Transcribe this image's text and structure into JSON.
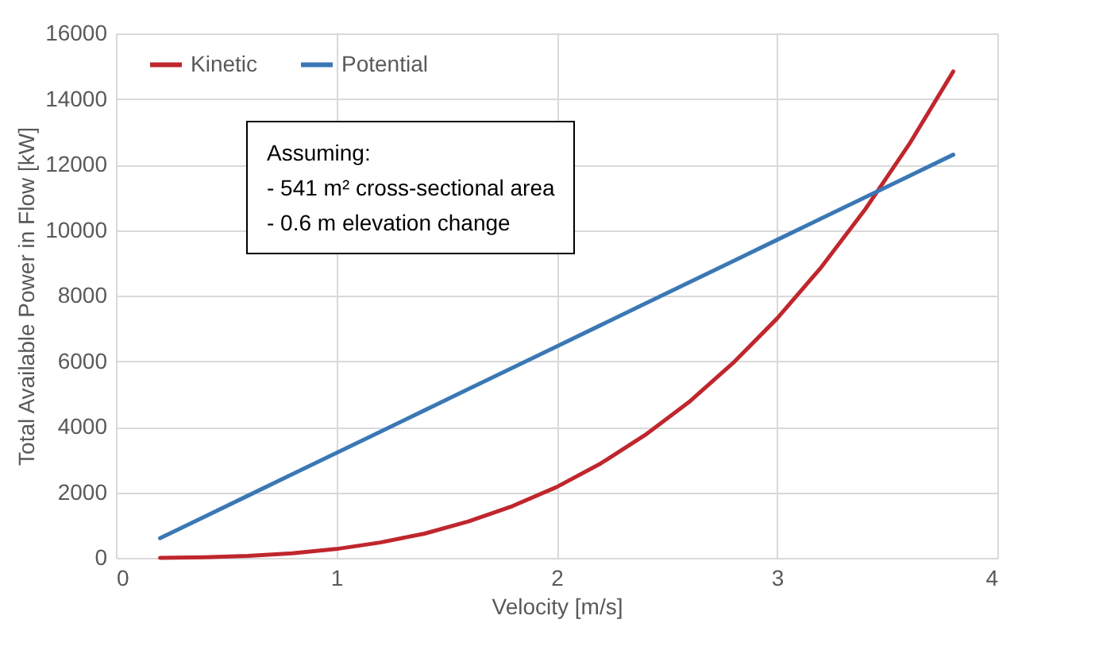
{
  "chart_data": {
    "type": "line",
    "xlabel": "Velocity [m/s]",
    "ylabel": "Total Available Power in Flow [kW]",
    "x": [
      0.2,
      0.4,
      0.6,
      0.8,
      1.0,
      1.2,
      1.4,
      1.6,
      1.8,
      2.0,
      2.2,
      2.4,
      2.6,
      2.8,
      3.0,
      3.2,
      3.4,
      3.6,
      3.8
    ],
    "series": [
      {
        "name": "Kinetic",
        "color": "#c0262d",
        "values": [
          0,
          20,
          60,
          140,
          270,
          470,
          740,
          1110,
          1580,
          2160,
          2880,
          3740,
          4750,
          5940,
          7300,
          8860,
          10630,
          12620,
          14840
        ]
      },
      {
        "name": "Potential",
        "color": "#3a78b5",
        "values": [
          600,
          1250,
          1900,
          2550,
          3200,
          3850,
          4500,
          5150,
          5800,
          6450,
          7100,
          7750,
          8400,
          9050,
          9700,
          10350,
          11000,
          11650,
          12300
        ]
      }
    ],
    "xlim": [
      0,
      4
    ],
    "xticks": [
      0,
      1,
      2,
      3,
      4
    ],
    "ylim": [
      0,
      16000
    ],
    "yticks": [
      0,
      2000,
      4000,
      6000,
      8000,
      10000,
      12000,
      14000,
      16000
    ],
    "grid": true,
    "legend": "top left",
    "marker": "none",
    "line_style": "solid",
    "annotations": [
      "Assuming:",
      "- 541 m² cross-sectional area",
      "- 0.6 m elevation change"
    ]
  }
}
